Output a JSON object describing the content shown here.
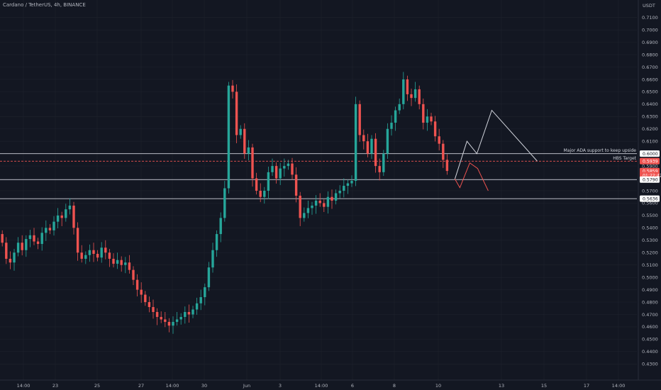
{
  "header": {
    "symbol": "Cardano / TetherUS, 4h, BINANCE"
  },
  "axis": {
    "currency": "USDT"
  },
  "colors": {
    "bg": "#131722",
    "up": "#26a69a",
    "down": "#ef5350",
    "grid": "#1e222d",
    "text": "#b2b5be"
  },
  "chart_data": {
    "type": "candlestick",
    "ylim": [
      0.425,
      0.715
    ],
    "y_ticks": [
      "0.7100",
      "0.7000",
      "0.6900",
      "0.6800",
      "0.6700",
      "0.6600",
      "0.6500",
      "0.6400",
      "0.6300",
      "0.6200",
      "0.6100",
      "0.6000",
      "0.5900",
      "0.5800",
      "0.5700",
      "0.5600",
      "0.5500",
      "0.5400",
      "0.5300",
      "0.5200",
      "0.5100",
      "0.5000",
      "0.4900",
      "0.4800",
      "0.4700",
      "0.4600",
      "0.4500",
      "0.4400",
      "0.4300"
    ],
    "x_ticks": [
      "14:00",
      "23",
      "25",
      "27",
      "14:00",
      "30",
      "Jun",
      "3",
      "14:00",
      "6",
      "8",
      "10",
      "13",
      "15",
      "17",
      "14:00"
    ],
    "price_tags": [
      {
        "text": "0.6000",
        "value": 0.6,
        "style": "white"
      },
      {
        "text": "0.5939",
        "value": 0.5939,
        "style": "red"
      },
      {
        "text": "0.5859",
        "value": 0.5859,
        "style": "red"
      },
      {
        "text": "01:22:42",
        "value": 0.5825,
        "style": "red"
      },
      {
        "text": "0.5790",
        "value": 0.579,
        "style": "white"
      },
      {
        "text": "0.5636",
        "value": 0.5636,
        "style": "white"
      }
    ],
    "levels": [
      {
        "value": 0.6,
        "label": "Major ADA support to keep upside",
        "style": "solid"
      },
      {
        "value": 0.5939,
        "label": "HBS Target",
        "style": "dashed-red"
      },
      {
        "value": 0.579,
        "label": "",
        "style": "solid"
      },
      {
        "value": 0.5636,
        "label": "",
        "style": "solid"
      }
    ],
    "closes": [
      0.528,
      0.515,
      0.512,
      0.52,
      0.528,
      0.522,
      0.531,
      0.534,
      0.529,
      0.527,
      0.536,
      0.54,
      0.538,
      0.545,
      0.55,
      0.548,
      0.555,
      0.558,
      0.54,
      0.52,
      0.515,
      0.518,
      0.522,
      0.519,
      0.516,
      0.524,
      0.52,
      0.515,
      0.511,
      0.514,
      0.51,
      0.512,
      0.506,
      0.498,
      0.49,
      0.486,
      0.48,
      0.476,
      0.472,
      0.468,
      0.466,
      0.464,
      0.461,
      0.464,
      0.466,
      0.468,
      0.472,
      0.47,
      0.474,
      0.479,
      0.484,
      0.492,
      0.508,
      0.522,
      0.535,
      0.548,
      0.572,
      0.655,
      0.65,
      0.615,
      0.62,
      0.6,
      0.605,
      0.58,
      0.57,
      0.565,
      0.57,
      0.585,
      0.59,
      0.58,
      0.588,
      0.59,
      0.592,
      0.583,
      0.566,
      0.548,
      0.552,
      0.556,
      0.558,
      0.562,
      0.56,
      0.557,
      0.565,
      0.562,
      0.568,
      0.57,
      0.574,
      0.576,
      0.578,
      0.64,
      0.615,
      0.61,
      0.6,
      0.612,
      0.59,
      0.585,
      0.6,
      0.62,
      0.625,
      0.635,
      0.64,
      0.66,
      0.648,
      0.645,
      0.652,
      0.64,
      0.625,
      0.63,
      0.626,
      0.614,
      0.608,
      0.595,
      0.586
    ],
    "projection_white": [
      [
        0.5795,
        0.61
      ],
      [
        0.6,
        0.635
      ],
      [
        0.594
      ]
    ],
    "projection_red": [
      [
        0.5795,
        0.5725
      ],
      [
        0.5925,
        0.588
      ],
      [
        0.57
      ]
    ]
  }
}
